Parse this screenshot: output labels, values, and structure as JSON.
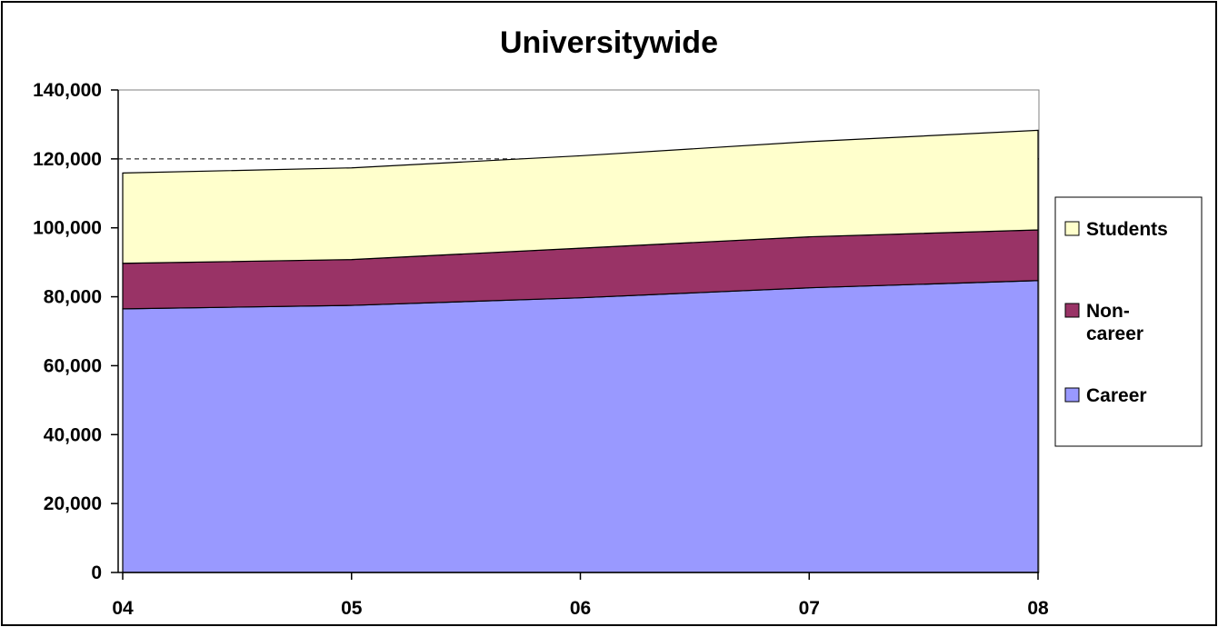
{
  "chart_data": {
    "type": "area",
    "stacked": true,
    "title": "Universitywide",
    "xlabel": "",
    "ylabel": "",
    "categories": [
      "04",
      "05",
      "06",
      "07",
      "08"
    ],
    "ylim": [
      0,
      140000
    ],
    "yticks": [
      0,
      20000,
      40000,
      60000,
      80000,
      100000,
      120000,
      140000
    ],
    "ytick_labels": [
      "0",
      "20,000",
      "40,000",
      "60,000",
      "80,000",
      "100,000",
      "120,000",
      "140,000"
    ],
    "grid": "none",
    "legend_position": "right",
    "series": [
      {
        "name": "Career",
        "values": [
          76500,
          77500,
          79700,
          82600,
          84700
        ],
        "color": "#9999ff"
      },
      {
        "name": "Non-career",
        "values": [
          13200,
          13300,
          14400,
          14800,
          14700
        ],
        "color": "#993366"
      },
      {
        "name": "Students",
        "values": [
          26200,
          26600,
          26800,
          27600,
          28900
        ],
        "color": "#ffffcc"
      }
    ],
    "legend_order": [
      "Students",
      "Non-career",
      "Career"
    ],
    "legend_labels": {
      "Students": [
        "Students"
      ],
      "Non-career": [
        "Non-",
        "career"
      ],
      "Career": [
        "Career"
      ]
    },
    "reference_line": {
      "value": 120000,
      "style": "dashed"
    }
  }
}
